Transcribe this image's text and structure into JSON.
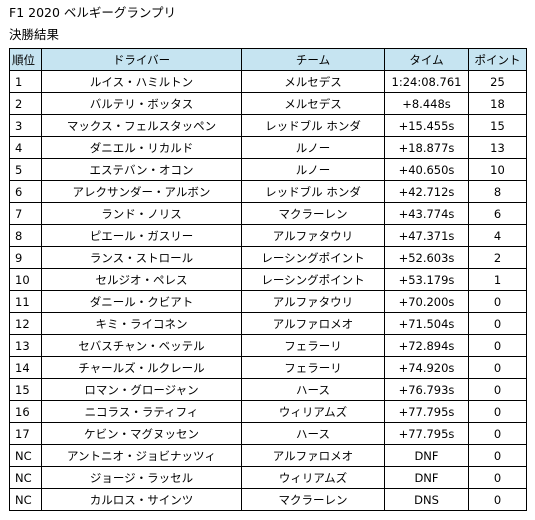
{
  "title": "F1 2020 ベルギーグランプリ",
  "subtitle": "決勝結果",
  "table": {
    "headers": {
      "position": "順位",
      "driver": "ドライバー",
      "team": "チーム",
      "time": "タイム",
      "points": "ポイント"
    },
    "header_color": "#c6e4f1",
    "rows": [
      {
        "position": "1",
        "driver": "ルイス・ハミルトン",
        "team": "メルセデス",
        "time": "1:24:08.761",
        "points": "25"
      },
      {
        "position": "2",
        "driver": "バルテリ・ボッタス",
        "team": "メルセデス",
        "time": "+8.448s",
        "points": "18"
      },
      {
        "position": "3",
        "driver": "マックス・フェルスタッペン",
        "team": "レッドブル ホンダ",
        "time": "+15.455s",
        "points": "15"
      },
      {
        "position": "4",
        "driver": "ダニエル・リカルド",
        "team": "ルノー",
        "time": "+18.877s",
        "points": "13"
      },
      {
        "position": "5",
        "driver": "エステバン・オコン",
        "team": "ルノー",
        "time": "+40.650s",
        "points": "10"
      },
      {
        "position": "6",
        "driver": "アレクサンダー・アルボン",
        "team": "レッドブル ホンダ",
        "time": "+42.712s",
        "points": "8"
      },
      {
        "position": "7",
        "driver": "ランド・ノリス",
        "team": "マクラーレン",
        "time": "+43.774s",
        "points": "6"
      },
      {
        "position": "8",
        "driver": "ピエール・ガスリー",
        "team": "アルファタウリ",
        "time": "+47.371s",
        "points": "4"
      },
      {
        "position": "9",
        "driver": "ランス・ストロール",
        "team": "レーシングポイント",
        "time": "+52.603s",
        "points": "2"
      },
      {
        "position": "10",
        "driver": "セルジオ・ペレス",
        "team": "レーシングポイント",
        "time": "+53.179s",
        "points": "1"
      },
      {
        "position": "11",
        "driver": "ダニール・クビアト",
        "team": "アルファタウリ",
        "time": "+70.200s",
        "points": "0"
      },
      {
        "position": "12",
        "driver": "キミ・ライコネン",
        "team": "アルファロメオ",
        "time": "+71.504s",
        "points": "0"
      },
      {
        "position": "13",
        "driver": "セバスチャン・ベッテル",
        "team": "フェラーリ",
        "time": "+72.894s",
        "points": "0"
      },
      {
        "position": "14",
        "driver": "チャールズ・ルクレール",
        "team": "フェラーリ",
        "time": "+74.920s",
        "points": "0"
      },
      {
        "position": "15",
        "driver": "ロマン・グロージャン",
        "team": "ハース",
        "time": "+76.793s",
        "points": "0"
      },
      {
        "position": "16",
        "driver": "ニコラス・ラティフィ",
        "team": "ウィリアムズ",
        "time": "+77.795s",
        "points": "0"
      },
      {
        "position": "17",
        "driver": "ケビン・マグヌッセン",
        "team": "ハース",
        "time": "+77.795s",
        "points": "0"
      },
      {
        "position": "NC",
        "driver": "アントニオ・ジョビナッツィ",
        "team": "アルファロメオ",
        "time": "DNF",
        "points": "0"
      },
      {
        "position": "NC",
        "driver": "ジョージ・ラッセル",
        "team": "ウィリアムズ",
        "time": "DNF",
        "points": "0"
      },
      {
        "position": "NC",
        "driver": "カルロス・サインツ",
        "team": "マクラーレン",
        "time": "DNS",
        "points": "0"
      }
    ]
  }
}
